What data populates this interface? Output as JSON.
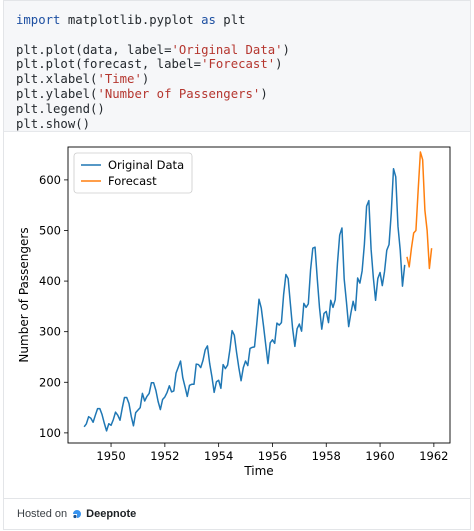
{
  "code": {
    "line1": {
      "kw1": "import",
      "mid": " matplotlib.pyplot ",
      "kw2": "as",
      "end": " plt"
    },
    "line2": {
      "a": "plt.plot(data, label=",
      "s": "'Original Data'",
      "b": ")"
    },
    "line3": {
      "a": "plt.plot(forecast, label=",
      "s": "'Forecast'",
      "b": ")"
    },
    "line4": {
      "a": "plt.xlabel(",
      "s": "'Time'",
      "b": ")"
    },
    "line5": {
      "a": "plt.ylabel(",
      "s": "'Number of Passengers'",
      "b": ")"
    },
    "line6": "plt.legend()",
    "line7": "plt.show()"
  },
  "footer": {
    "hosted_on": "Hosted on",
    "brand": "Deepnote"
  },
  "colors": {
    "original": "#1f77b4",
    "forecast": "#ff7f0e",
    "keyword": "#1e50a2",
    "string": "#b5362f"
  },
  "chart_data": {
    "type": "line",
    "xlabel": "Time",
    "ylabel": "Number of Passengers",
    "xlim": [
      1948.4,
      1962.6
    ],
    "ylim": [
      80,
      665
    ],
    "xticks": [
      1950,
      1952,
      1954,
      1956,
      1958,
      1960,
      1962
    ],
    "yticks": [
      100,
      200,
      300,
      400,
      500,
      600
    ],
    "legend": "top-left",
    "grid": false,
    "series": [
      {
        "name": "Original Data",
        "color": "#1f77b4",
        "x_start": 1949.0,
        "x_step": 0.0833333,
        "values": [
          112,
          118,
          132,
          129,
          121,
          135,
          148,
          148,
          136,
          119,
          104,
          118,
          115,
          126,
          141,
          135,
          125,
          149,
          170,
          170,
          158,
          133,
          114,
          140,
          145,
          150,
          178,
          163,
          172,
          178,
          199,
          199,
          184,
          162,
          146,
          166,
          171,
          180,
          193,
          181,
          183,
          218,
          230,
          242,
          209,
          191,
          172,
          194,
          196,
          196,
          236,
          235,
          229,
          243,
          264,
          272,
          237,
          211,
          180,
          201,
          204,
          188,
          235,
          227,
          234,
          264,
          302,
          293,
          259,
          229,
          203,
          229,
          242,
          233,
          267,
          269,
          270,
          315,
          364,
          347,
          312,
          274,
          237,
          278,
          284,
          277,
          317,
          313,
          318,
          374,
          413,
          405,
          355,
          306,
          271,
          306,
          315,
          301,
          356,
          348,
          355,
          422,
          465,
          467,
          404,
          347,
          305,
          336,
          340,
          318,
          362,
          348,
          363,
          435,
          491,
          505,
          404,
          359,
          310,
          337,
          360,
          342,
          406,
          396,
          420,
          472,
          548,
          559,
          463,
          407,
          362,
          405,
          417,
          391,
          419,
          461,
          472,
          535,
          622,
          606,
          508,
          461,
          390,
          432
        ]
      },
      {
        "name": "Forecast",
        "color": "#ff7f0e",
        "x_start": 1961.0,
        "x_step": 0.0833333,
        "values": [
          448,
          428,
          465,
          495,
          500,
          580,
          655,
          640,
          540,
          500,
          425,
          465
        ]
      }
    ]
  }
}
